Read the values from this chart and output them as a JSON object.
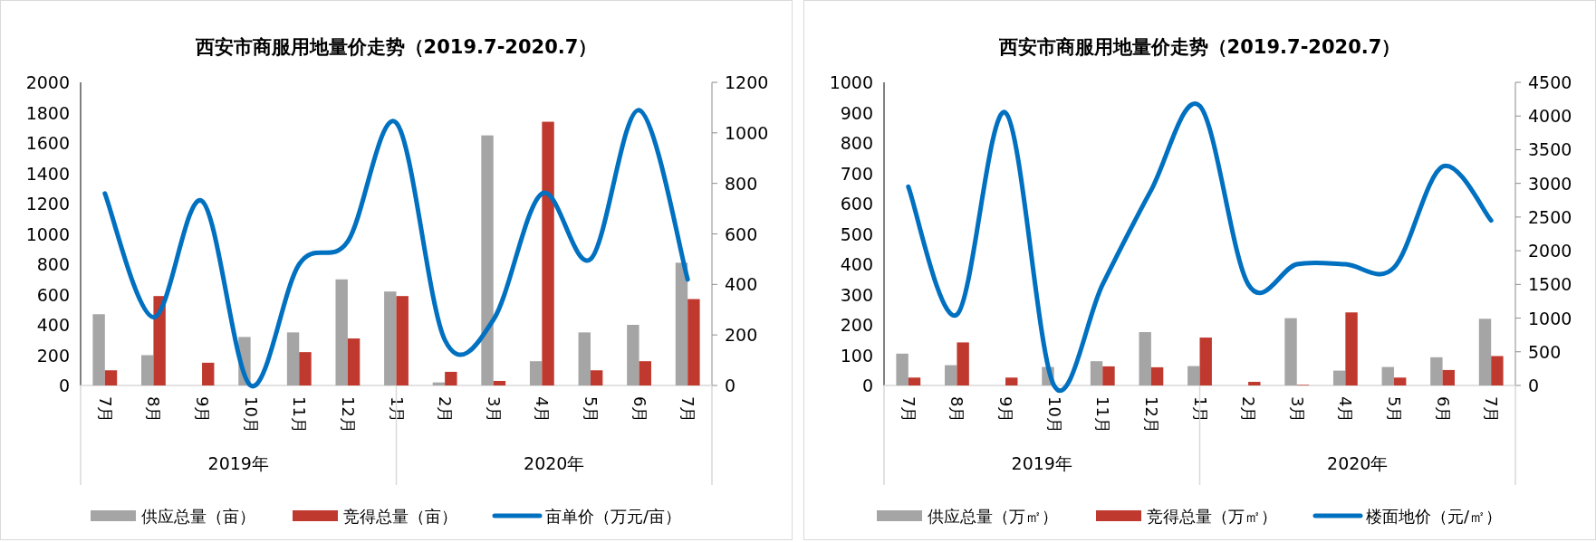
{
  "chart_data": [
    {
      "type": "bar",
      "title": "西安市商服用地量价走势（2019.7-2020.7）",
      "categories": [
        "7月",
        "8月",
        "9月",
        "10月",
        "11月",
        "12月",
        "1月",
        "2月",
        "3月",
        "4月",
        "5月",
        "6月",
        "7月"
      ],
      "annotations": [
        "2019年",
        "2020年"
      ],
      "ylim": [
        0,
        2000
      ],
      "yticks": [
        0,
        200,
        400,
        600,
        800,
        1000,
        1200,
        1400,
        1600,
        1800,
        2000
      ],
      "y2lim": [
        0,
        1200
      ],
      "y2ticks": [
        0,
        200,
        400,
        600,
        800,
        1000,
        1200
      ],
      "legend": "bottom",
      "series": [
        {
          "name": "供应总量（亩）",
          "color": "#a5a5a5",
          "values": [
            470,
            200,
            0,
            320,
            350,
            700,
            620,
            20,
            1650,
            160,
            350,
            400,
            810
          ]
        },
        {
          "name": "竞得总量（亩）",
          "color": "#c0392f",
          "values": [
            100,
            590,
            150,
            0,
            220,
            310,
            590,
            90,
            30,
            1740,
            100,
            160,
            570
          ]
        },
        {
          "name": "亩单价（万元/亩）",
          "type": "line",
          "axis": "y2",
          "color": "#0070c0",
          "values": [
            760,
            270,
            730,
            0,
            480,
            570,
            1040,
            180,
            260,
            760,
            500,
            1090,
            420
          ]
        }
      ]
    },
    {
      "type": "bar",
      "title": "西安市商服用地量价走势（2019.7-2020.7）",
      "categories": [
        "7月",
        "8月",
        "9月",
        "10月",
        "11月",
        "12月",
        "1月",
        "2月",
        "3月",
        "4月",
        "5月",
        "6月",
        "7月"
      ],
      "annotations": [
        "2019年",
        "2020年"
      ],
      "ylim": [
        0,
        1000
      ],
      "yticks": [
        0,
        100,
        200,
        300,
        400,
        500,
        600,
        700,
        800,
        900,
        1000
      ],
      "y2lim": [
        0,
        4500
      ],
      "y2ticks": [
        0,
        500,
        1000,
        1500,
        2000,
        2500,
        3000,
        3500,
        4000,
        4500
      ],
      "legend": "bottom",
      "series": [
        {
          "name": "供应总量（万㎡）",
          "color": "#a5a5a5",
          "values": [
            105,
            67,
            0,
            61,
            80,
            176,
            64,
            null,
            222,
            49,
            61,
            93,
            220
          ]
        },
        {
          "name": "竞得总量（万㎡）",
          "color": "#c0392f",
          "values": [
            26,
            142,
            26,
            0,
            63,
            60,
            158,
            12,
            2,
            241,
            26,
            51,
            97
          ]
        },
        {
          "name": "楼面地价（元/㎡）",
          "type": "line",
          "axis": "y2",
          "color": "#0070c0",
          "values": [
            2950,
            1050,
            4050,
            0,
            1500,
            2900,
            4150,
            1500,
            1800,
            1800,
            1750,
            3250,
            2450
          ]
        }
      ]
    }
  ]
}
